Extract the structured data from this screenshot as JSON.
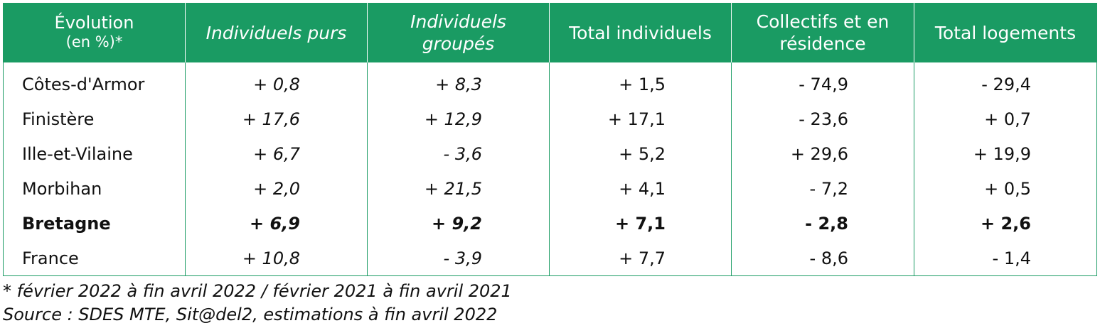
{
  "table": {
    "headers": [
      {
        "line1": "Évolution",
        "line2": "(en %)*"
      },
      {
        "text": "Individuels purs"
      },
      {
        "line1": "Individuels",
        "line2": "groupés"
      },
      {
        "text": "Total individuels"
      },
      {
        "line1": "Collectifs et en",
        "line2": "résidence"
      },
      {
        "text": "Total logements"
      }
    ],
    "rows": [
      {
        "label": "Côtes-d'Armor",
        "values": [
          "+ 0,8",
          "+ 8,3",
          "+ 1,5",
          "- 74,9",
          "- 29,4"
        ]
      },
      {
        "label": "Finistère",
        "values": [
          "+ 17,6",
          "+ 12,9",
          "+ 17,1",
          "- 23,6",
          "+ 0,7"
        ]
      },
      {
        "label": "Ille-et-Vilaine",
        "values": [
          "+ 6,7",
          "- 3,6",
          "+ 5,2",
          "+ 29,6",
          "+ 19,9"
        ]
      },
      {
        "label": "Morbihan",
        "values": [
          "+ 2,0",
          "+ 21,5",
          "+ 4,1",
          "- 7,2",
          "+ 0,5"
        ]
      },
      {
        "label": "Bretagne",
        "values": [
          "+ 6,9",
          "+ 9,2",
          "+ 7,1",
          "- 2,8",
          "+ 2,6"
        ]
      },
      {
        "label": "France",
        "values": [
          "+ 10,8",
          "- 3,9",
          "+ 7,7",
          "- 8,6",
          "- 1,4"
        ]
      }
    ]
  },
  "notes": {
    "footnote": "* février 2022 à fin avril 2022 /  février 2021 à fin avril 2021",
    "source": "Source : SDES MTE, Sit@del2, estimations à fin avril 2022"
  },
  "colors": {
    "header_bg": "#1a9b63",
    "header_text": "#ffffff",
    "border": "#1a9b63"
  }
}
